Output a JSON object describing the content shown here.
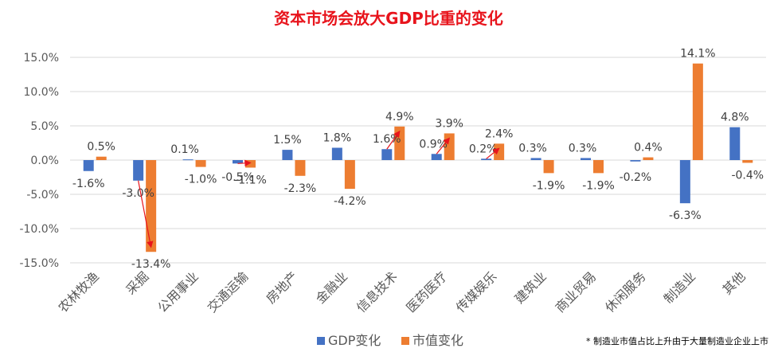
{
  "chart_data": {
    "type": "bar",
    "title": "资本市场会放大GDP比重的变化",
    "xlabel": "",
    "ylabel": "",
    "ylim": [
      -15,
      15
    ],
    "yticks": [
      15,
      10,
      5,
      0,
      -5,
      -10,
      -15
    ],
    "ytick_labels": [
      "15.0%",
      "10.0%",
      "5.0%",
      "0.0%",
      "-5.0%",
      "-10.0%",
      "-15.0%"
    ],
    "grid": true,
    "legend_position": "bottom",
    "categories": [
      "农林牧渔",
      "采掘",
      "公用事业",
      "交通运输",
      "房地产",
      "金融业",
      "信息技术",
      "医药医疗",
      "传媒娱乐",
      "建筑业",
      "商业贸易",
      "休闲服务",
      "制造业",
      "其他"
    ],
    "series": [
      {
        "name": "GDP变化",
        "color": "#4472C4",
        "values": [
          -1.6,
          -3.0,
          0.1,
          -0.5,
          1.5,
          1.8,
          1.6,
          0.9,
          0.2,
          0.3,
          0.3,
          -0.2,
          -6.3,
          4.8
        ],
        "labels": [
          "-1.6%",
          "-3.0%",
          "0.1%",
          "-0.5%",
          "1.5%",
          "1.8%",
          "1.6%",
          "0.9%",
          "0.2%",
          "0.3%",
          "0.3%",
          "-0.2%",
          "-6.3%",
          "4.8%"
        ]
      },
      {
        "name": "市值变化",
        "color": "#ED7D31",
        "values": [
          0.5,
          -13.4,
          -1.0,
          -1.1,
          -2.3,
          -4.2,
          4.9,
          3.9,
          2.4,
          -1.9,
          -1.9,
          0.4,
          14.1,
          -0.4
        ],
        "labels": [
          "0.5%",
          "-13.4%",
          "-1.0%",
          "-1.1%",
          "-2.3%",
          "-4.2%",
          "4.9%",
          "3.9%",
          "2.4%",
          "-1.9%",
          "-1.9%",
          "0.4%",
          "14.1%",
          "-0.4%"
        ]
      }
    ],
    "arrow_categories": [
      "采掘",
      "交通运输",
      "信息技术",
      "医药医疗",
      "传媒娱乐"
    ],
    "annotation": "* 制造业市值占比上升由于大量制造业企业上市",
    "colors": {
      "title": "#E8141C",
      "arrow": "#E8141C",
      "grid": "#D9D9D9",
      "axis_text": "#595959"
    }
  }
}
